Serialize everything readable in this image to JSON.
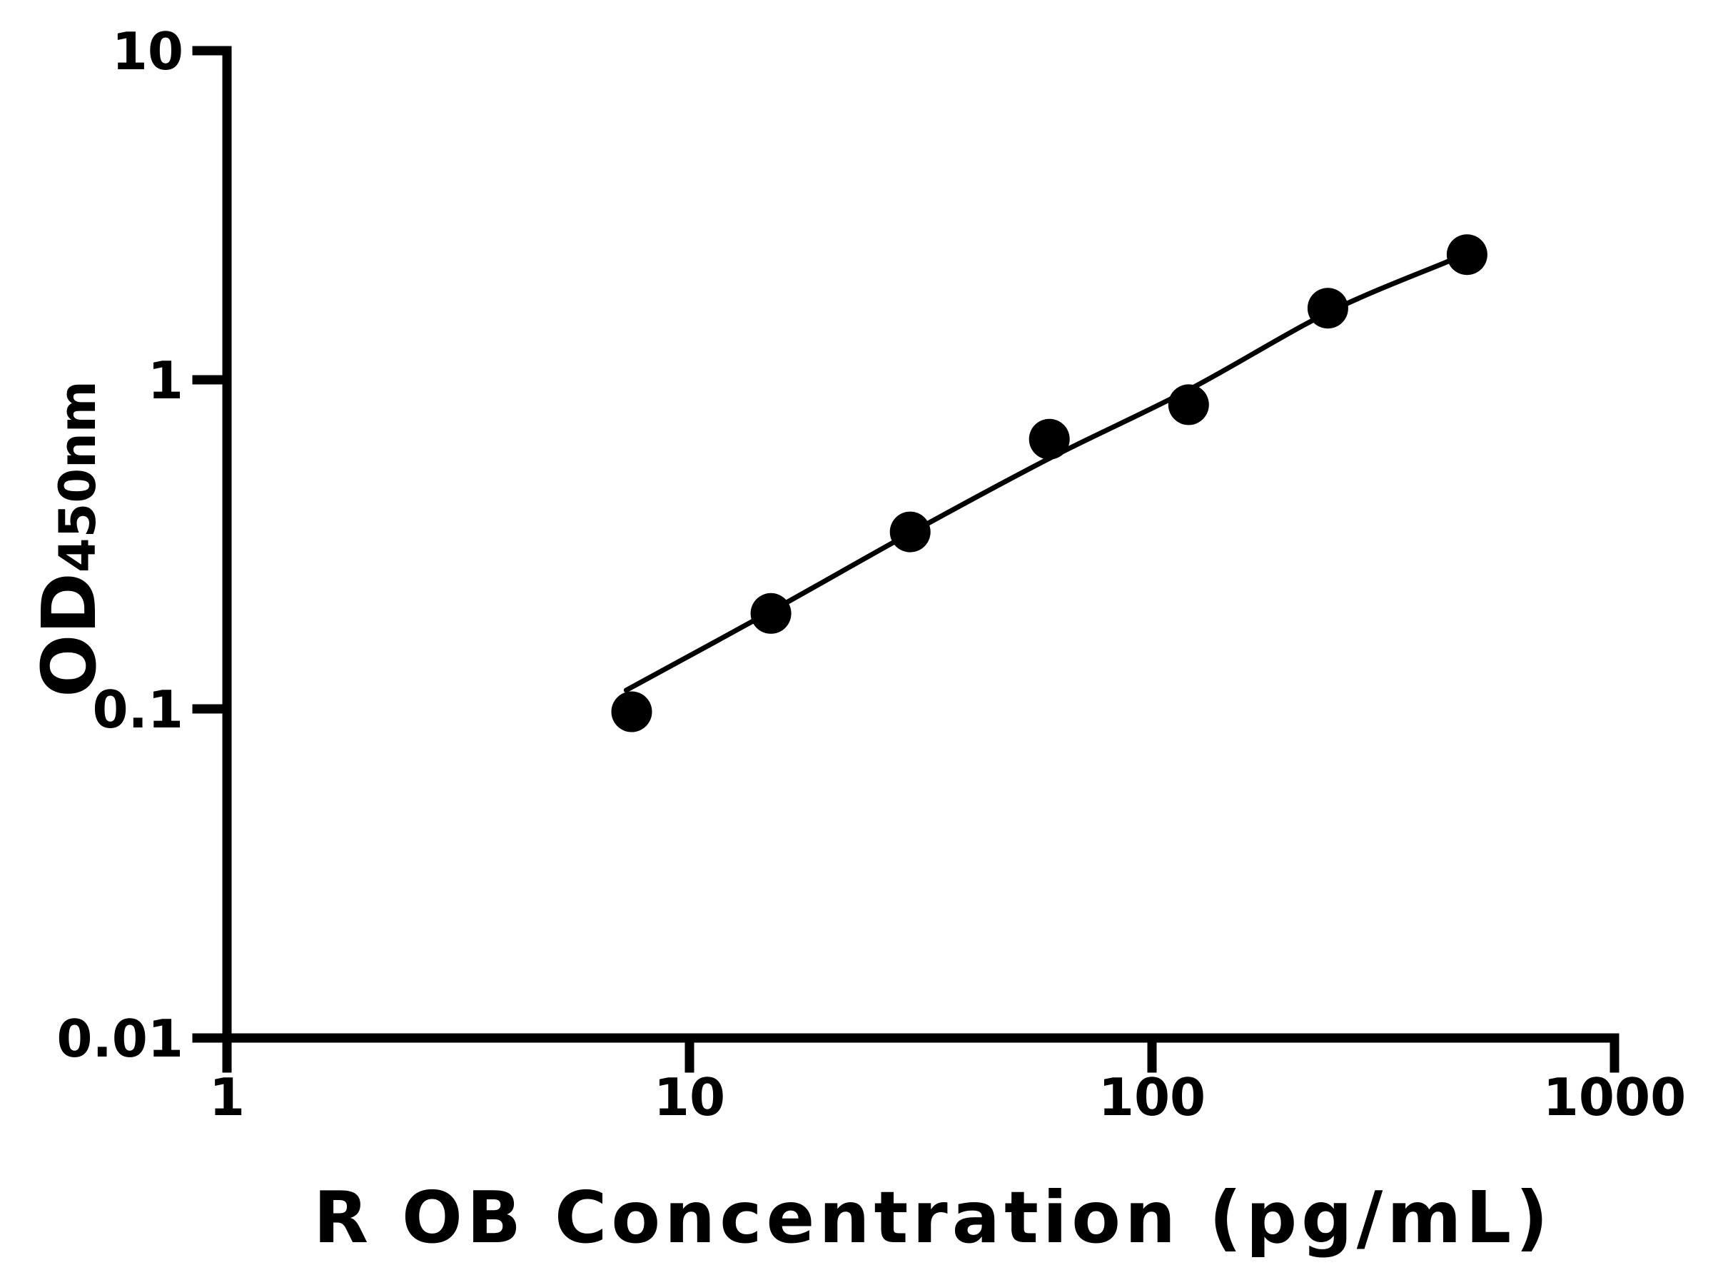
{
  "figure": {
    "background": "#ffffff",
    "foreground": "#000000"
  },
  "chart_data": {
    "type": "scatter",
    "title": "",
    "xlabel": "R OB Concentration (pg/mL)",
    "ylabel_main": "OD",
    "ylabel_sub": "450nm",
    "x_scale": "log",
    "y_scale": "log",
    "xlim": [
      1,
      1000
    ],
    "ylim": [
      0.01,
      10
    ],
    "grid": false,
    "legend": false,
    "x_ticks": {
      "values": [
        1,
        10,
        100,
        1000
      ],
      "labels": [
        "1",
        "10",
        "100",
        "1000"
      ]
    },
    "y_ticks": {
      "values": [
        10,
        1,
        0.1,
        0.01
      ],
      "labels": [
        "10",
        "1",
        "0.1",
        "0.01"
      ]
    },
    "series": [
      {
        "name": "standard-points",
        "marker": "circle",
        "color": "#000000",
        "points": [
          {
            "x": 7.5,
            "y": 0.098
          },
          {
            "x": 15,
            "y": 0.195
          },
          {
            "x": 30,
            "y": 0.345
          },
          {
            "x": 60,
            "y": 0.66
          },
          {
            "x": 120,
            "y": 0.84
          },
          {
            "x": 240,
            "y": 1.65
          },
          {
            "x": 480,
            "y": 2.4
          }
        ]
      }
    ],
    "fit_line": {
      "name": "fitted-standard-curve",
      "color": "#000000",
      "points": [
        {
          "x": 7.3,
          "y": 0.114
        },
        {
          "x": 15,
          "y": 0.198
        },
        {
          "x": 30,
          "y": 0.342
        },
        {
          "x": 60,
          "y": 0.577
        },
        {
          "x": 120,
          "y": 0.932
        },
        {
          "x": 240,
          "y": 1.6
        },
        {
          "x": 437,
          "y": 2.29
        }
      ]
    }
  }
}
